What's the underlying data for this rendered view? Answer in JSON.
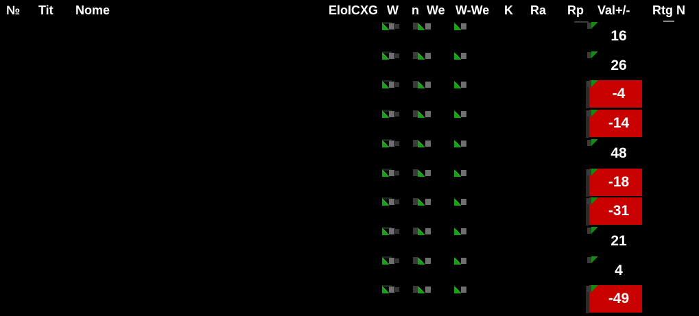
{
  "table": {
    "headers": [
      "№",
      "Tit",
      "Nome",
      "EloICXG",
      "W",
      "n",
      "We",
      "W-We",
      "K",
      "Ra",
      "Rp",
      "Val+/-",
      "Rtg N"
    ],
    "rows": [
      {
        "val": "16"
      },
      {
        "val": "26"
      },
      {
        "val": "-4"
      },
      {
        "val": "-14"
      },
      {
        "val": "48"
      },
      {
        "val": "-18"
      },
      {
        "val": "-31"
      },
      {
        "val": "21"
      },
      {
        "val": "4"
      },
      {
        "val": "-49"
      }
    ]
  },
  "colors": {
    "background": "#000000",
    "header_text": "#ffffff",
    "value_text": "#ffffff",
    "negative_cell_bg": "#c80000",
    "indicator_green": "#17a017",
    "indicator_gray": "#6f6f6f",
    "indicator_dark_gray": "#3a3a3a"
  },
  "icons": {
    "cell_indicator": "green-triangle-with-gray-squares",
    "cell_flag": "green-corner-triangle"
  }
}
